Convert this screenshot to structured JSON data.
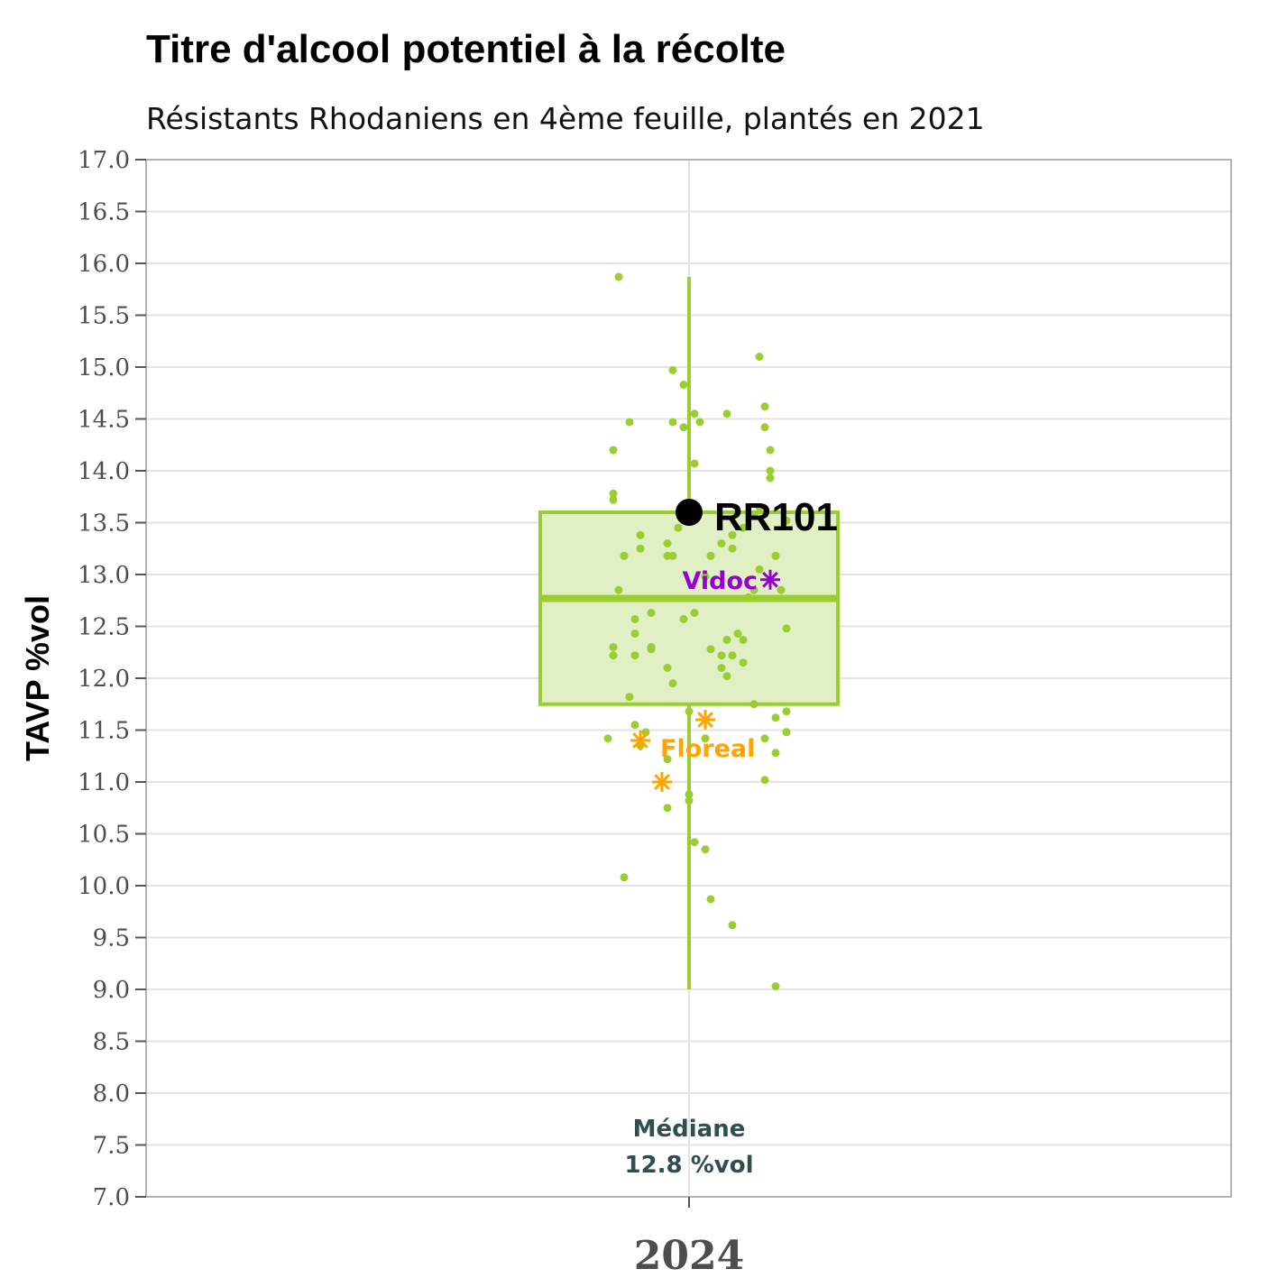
{
  "chart_data": {
    "type": "box",
    "title": "Titre d'alcool potentiel à la récolte",
    "subtitle": "Résistants Rhodaniens en 4ème feuille, plantés en 2021",
    "ylabel": "TAVP %vol",
    "xlabel": "",
    "categories": [
      "2024"
    ],
    "ylim": [
      7.0,
      17.0
    ],
    "y_ticks": [
      "7.0",
      "7.5",
      "8.0",
      "8.5",
      "9.0",
      "9.5",
      "10.0",
      "10.5",
      "11.0",
      "11.5",
      "12.0",
      "12.5",
      "13.0",
      "13.5",
      "14.0",
      "14.5",
      "15.0",
      "15.5",
      "16.0",
      "16.5",
      "17.0"
    ],
    "y_tick_values": [
      7.0,
      7.5,
      8.0,
      8.5,
      9.0,
      9.5,
      10.0,
      10.5,
      11.0,
      11.5,
      12.0,
      12.5,
      13.0,
      13.5,
      14.0,
      14.5,
      15.0,
      15.5,
      16.0,
      16.5,
      17.0
    ],
    "grid": true,
    "box": {
      "category": "2024",
      "q1": 11.75,
      "median": 12.77,
      "q3": 13.6,
      "whisker_low": 9.0,
      "whisker_high": 15.87,
      "color": "#9acd32",
      "fill": "#e1f0c4"
    },
    "median_annotation": {
      "line1": "Médiane",
      "line2": "12.8 %vol",
      "color": "#2f4f4f"
    },
    "jitter_points": {
      "color": "#9acd32",
      "points": [
        [
          -0.13,
          15.87
        ],
        [
          0.13,
          15.1
        ],
        [
          -0.03,
          14.97
        ],
        [
          -0.01,
          14.83
        ],
        [
          0.14,
          14.62
        ],
        [
          0.07,
          14.55
        ],
        [
          0.01,
          14.55
        ],
        [
          -0.03,
          14.47
        ],
        [
          0.02,
          14.47
        ],
        [
          -0.11,
          14.47
        ],
        [
          0.14,
          14.42
        ],
        [
          -0.01,
          14.42
        ],
        [
          0.15,
          14.2
        ],
        [
          -0.14,
          14.2
        ],
        [
          0.01,
          14.07
        ],
        [
          0.15,
          14.0
        ],
        [
          0.15,
          13.93
        ],
        [
          -0.14,
          13.78
        ],
        [
          -0.14,
          13.72
        ],
        [
          0.13,
          13.65
        ],
        [
          0.12,
          13.58
        ],
        [
          0.18,
          13.52
        ],
        [
          0.1,
          13.45
        ],
        [
          -0.02,
          13.45
        ],
        [
          0.08,
          13.38
        ],
        [
          -0.09,
          13.38
        ],
        [
          0.06,
          13.3
        ],
        [
          -0.04,
          13.3
        ],
        [
          0.08,
          13.25
        ],
        [
          -0.09,
          13.25
        ],
        [
          0.16,
          13.18
        ],
        [
          0.04,
          13.18
        ],
        [
          -0.03,
          13.18
        ],
        [
          -0.04,
          13.18
        ],
        [
          -0.12,
          13.18
        ],
        [
          0.13,
          13.05
        ],
        [
          0.03,
          12.98
        ],
        [
          0.17,
          12.85
        ],
        [
          0.12,
          12.85
        ],
        [
          -0.13,
          12.85
        ],
        [
          0.11,
          12.78
        ],
        [
          0.01,
          12.63
        ],
        [
          -0.07,
          12.63
        ],
        [
          -0.01,
          12.57
        ],
        [
          -0.1,
          12.57
        ],
        [
          0.18,
          12.48
        ],
        [
          0.09,
          12.43
        ],
        [
          -0.1,
          12.43
        ],
        [
          0.07,
          12.37
        ],
        [
          0.1,
          12.37
        ],
        [
          -0.14,
          12.3
        ],
        [
          -0.07,
          12.3
        ],
        [
          0.04,
          12.28
        ],
        [
          -0.07,
          12.28
        ],
        [
          -0.1,
          12.22
        ],
        [
          0.08,
          12.22
        ],
        [
          0.06,
          12.22
        ],
        [
          -0.14,
          12.22
        ],
        [
          0.1,
          12.15
        ],
        [
          0.06,
          12.1
        ],
        [
          -0.04,
          12.1
        ],
        [
          0.07,
          12.02
        ],
        [
          -0.03,
          11.95
        ],
        [
          -0.11,
          11.82
        ],
        [
          0.12,
          11.75
        ],
        [
          0.18,
          11.68
        ],
        [
          0.0,
          11.68
        ],
        [
          0.16,
          11.62
        ],
        [
          -0.1,
          11.55
        ],
        [
          0.18,
          11.48
        ],
        [
          -0.08,
          11.48
        ],
        [
          -0.15,
          11.42
        ],
        [
          0.14,
          11.42
        ],
        [
          0.03,
          11.42
        ],
        [
          -0.09,
          11.35
        ],
        [
          0.16,
          11.28
        ],
        [
          -0.04,
          11.22
        ],
        [
          0.14,
          11.02
        ],
        [
          0.0,
          10.88
        ],
        [
          0.0,
          10.82
        ],
        [
          -0.04,
          10.75
        ],
        [
          0.01,
          10.42
        ],
        [
          0.03,
          10.35
        ],
        [
          -0.12,
          10.08
        ],
        [
          0.04,
          9.87
        ],
        [
          0.08,
          9.62
        ],
        [
          0.16,
          9.03
        ]
      ]
    },
    "highlights": [
      {
        "label": "RR101",
        "dx": 0.0,
        "value": 13.6,
        "marker": "circle",
        "color": "#000000"
      },
      {
        "label": "Vidoc",
        "dx": 0.15,
        "value": 12.95,
        "marker": "asterisk",
        "color": "#9400d3"
      },
      {
        "label": "Floreal",
        "dx": -0.09,
        "value": 11.4,
        "marker": "asterisk",
        "color": "#ffa500"
      },
      {
        "label": "",
        "dx": 0.03,
        "value": 11.6,
        "marker": "asterisk",
        "color": "#ffa500"
      },
      {
        "label": "",
        "dx": -0.05,
        "value": 11.0,
        "marker": "asterisk",
        "color": "#ffa500"
      }
    ]
  }
}
